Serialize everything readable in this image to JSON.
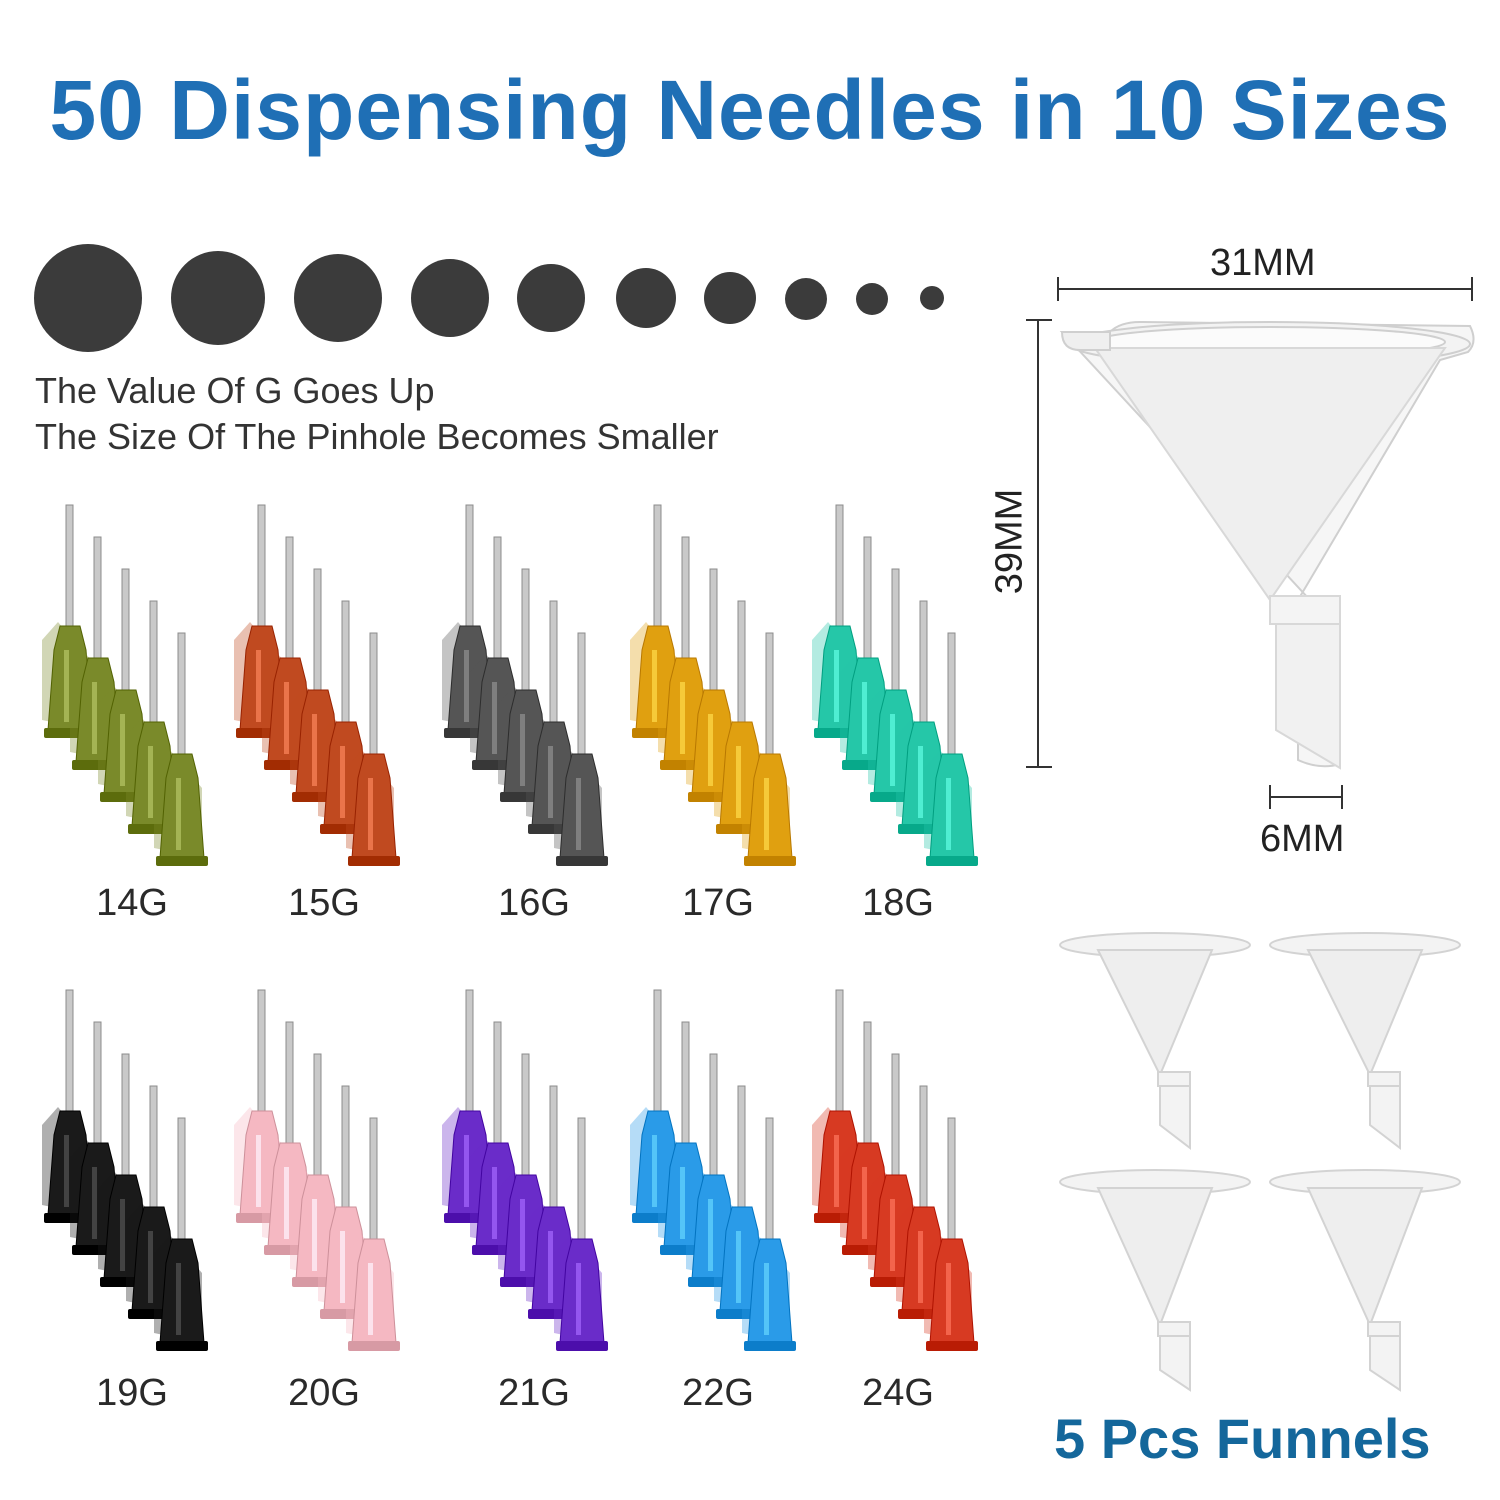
{
  "title": "50 Dispensing Needles in 10 Sizes",
  "notes": {
    "line1": "The Value Of G Goes Up",
    "line2": "The Size Of The Pinhole Becomes Smaller"
  },
  "needle_groups": [
    {
      "label": "14G",
      "color": "#7a8a2a"
    },
    {
      "label": "15G",
      "color": "#c04a20"
    },
    {
      "label": "16G",
      "color": "#555555"
    },
    {
      "label": "17G",
      "color": "#e0a010"
    },
    {
      "label": "18G",
      "color": "#25c7a8"
    },
    {
      "label": "19G",
      "color": "#1a1a1a"
    },
    {
      "label": "20G",
      "color": "#f5b8c2"
    },
    {
      "label": "21G",
      "color": "#6a2cc9"
    },
    {
      "label": "22G",
      "color": "#2a9be8"
    },
    {
      "label": "24G",
      "color": "#d73a22"
    }
  ],
  "dimensions": {
    "width": "31MM",
    "height": "39MM",
    "tip": "6MM"
  },
  "funnels_label": "5 Pcs Funnels",
  "colors": {
    "title": "#1f6fb5",
    "funnels_label": "#14679b",
    "dot": "#3b3b3b"
  }
}
